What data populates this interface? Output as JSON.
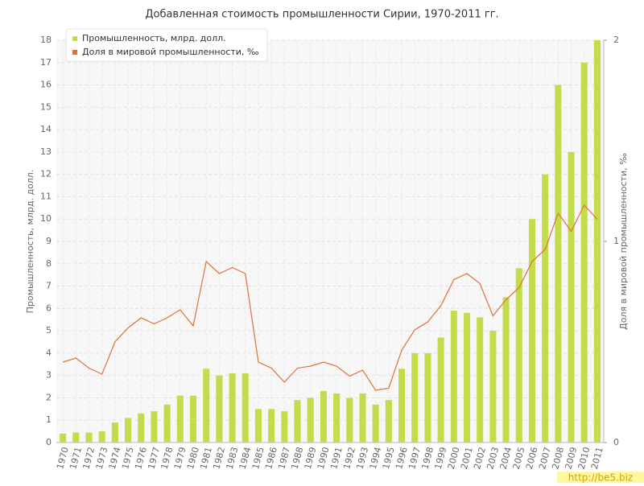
{
  "chart_data": {
    "type": "bar",
    "title": "Добавленная стоимость промышленности Сирии, 1970-2011 гг.",
    "y_label": "Промышленность, млрд. долл.",
    "y2_label": "Доля в мировой промышленности, ‰",
    "watermark": "http://be5.biz",
    "categories": [
      "1970",
      "1971",
      "1972",
      "1973",
      "1974",
      "1975",
      "1976",
      "1977",
      "1978",
      "1979",
      "1980",
      "1981",
      "1982",
      "1983",
      "1984",
      "1985",
      "1986",
      "1987",
      "1988",
      "1989",
      "1990",
      "1991",
      "1992",
      "1993",
      "1994",
      "1995",
      "1996",
      "1997",
      "1998",
      "1999",
      "2000",
      "2001",
      "2002",
      "2003",
      "2004",
      "2005",
      "2006",
      "2007",
      "2008",
      "2009",
      "2010",
      "2011"
    ],
    "series": [
      {
        "name": "Промышленность, млрд. долл.",
        "color": "#c3dc4c",
        "type": "bar",
        "values": [
          0.4,
          0.45,
          0.45,
          0.5,
          0.9,
          1.1,
          1.3,
          1.4,
          1.7,
          2.1,
          2.1,
          3.3,
          3.0,
          3.1,
          3.1,
          1.5,
          1.5,
          1.4,
          1.9,
          2.0,
          2.3,
          2.2,
          2.0,
          2.2,
          1.7,
          1.9,
          3.3,
          4.0,
          4.0,
          4.7,
          5.9,
          5.8,
          5.6,
          5.0,
          6.5,
          7.8,
          10.0,
          12.0,
          16.0,
          13.0,
          17.0,
          18.0
        ]
      },
      {
        "name": "Доля в мировой промышленности, ‰",
        "color": "#e0703c",
        "type": "line",
        "axis": "y2",
        "values": [
          0.4,
          0.42,
          0.37,
          0.34,
          0.5,
          0.57,
          0.62,
          0.59,
          0.62,
          0.66,
          0.58,
          0.9,
          0.84,
          0.87,
          0.84,
          0.4,
          0.37,
          0.3,
          0.37,
          0.38,
          0.4,
          0.38,
          0.33,
          0.36,
          0.26,
          0.27,
          0.46,
          0.56,
          0.6,
          0.68,
          0.81,
          0.84,
          0.79,
          0.63,
          0.71,
          0.77,
          0.9,
          0.96,
          1.14,
          1.05,
          1.18,
          1.11
        ]
      }
    ],
    "ylim": [
      0,
      18
    ],
    "yticks": [
      0,
      1,
      2,
      3,
      4,
      5,
      6,
      7,
      8,
      9,
      10,
      11,
      12,
      13,
      14,
      15,
      16,
      17,
      18
    ],
    "y2lim": [
      0,
      2
    ],
    "y2ticks": [
      0,
      1,
      2
    ],
    "grid": true,
    "legend": "top-left"
  }
}
